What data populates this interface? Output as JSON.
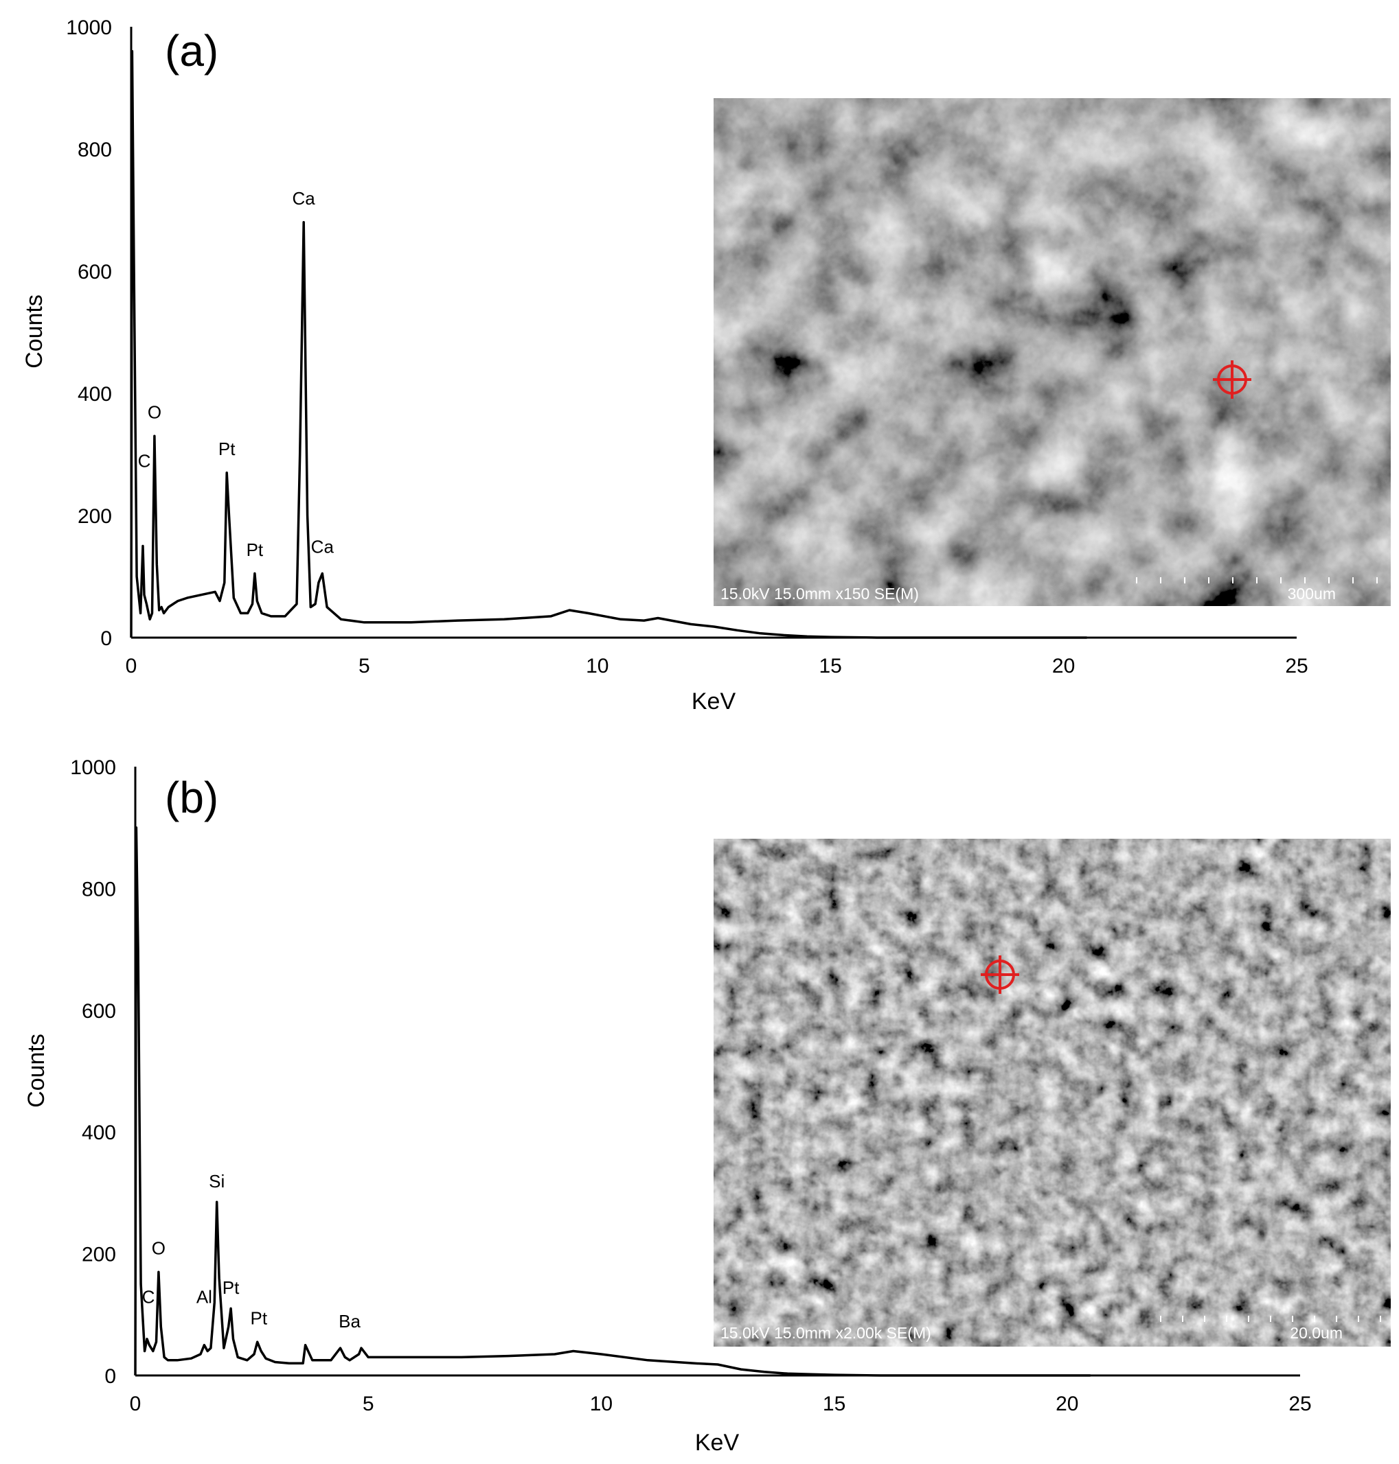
{
  "chart_data": [
    {
      "type": "line",
      "panel_label": "(a)",
      "xlabel": "KeV",
      "ylabel": "Counts",
      "xlim": [
        0,
        25
      ],
      "ylim": [
        0,
        1000
      ],
      "x_ticks": [
        0,
        5,
        10,
        15,
        20,
        25
      ],
      "y_ticks": [
        0,
        200,
        400,
        600,
        800,
        1000
      ],
      "grid": false,
      "legend": "none",
      "series": [
        {
          "x": [
            0,
            0.02,
            0.06,
            0.12,
            0.2,
            0.25,
            0.28,
            0.33,
            0.4,
            0.45,
            0.5,
            0.55,
            0.6,
            0.65,
            0.7,
            0.8,
            1.0,
            1.2,
            1.5,
            1.8,
            1.9,
            2.0,
            2.05,
            2.1,
            2.2,
            2.35,
            2.5,
            2.6,
            2.65,
            2.7,
            2.8,
            3.0,
            3.3,
            3.55,
            3.62,
            3.7,
            3.78,
            3.85,
            3.95,
            4.02,
            4.1,
            4.2,
            4.5,
            5,
            6,
            7,
            8,
            9,
            9.4,
            9.8,
            10.5,
            11,
            11.3,
            12,
            12.5,
            13,
            13.5,
            14,
            14.5,
            15,
            16,
            17,
            18,
            19,
            20,
            20.5
          ],
          "y": [
            0,
            960,
            600,
            100,
            40,
            150,
            70,
            55,
            30,
            40,
            330,
            120,
            45,
            50,
            40,
            50,
            60,
            65,
            70,
            75,
            60,
            90,
            270,
            200,
            65,
            40,
            40,
            55,
            105,
            60,
            40,
            35,
            35,
            55,
            300,
            680,
            200,
            50,
            55,
            90,
            105,
            50,
            30,
            25,
            25,
            28,
            30,
            35,
            45,
            40,
            30,
            28,
            32,
            22,
            18,
            12,
            7,
            4,
            2,
            1,
            0,
            0,
            0,
            0,
            0,
            0
          ]
        }
      ],
      "annotations": [
        {
          "text": "C",
          "x": 0.28,
          "y": 270
        },
        {
          "text": "O",
          "x": 0.5,
          "y": 350
        },
        {
          "text": "Pt",
          "x": 2.05,
          "y": 290
        },
        {
          "text": "Pt",
          "x": 2.65,
          "y": 125
        },
        {
          "text": "Ca",
          "x": 3.7,
          "y": 700
        },
        {
          "text": "Ca",
          "x": 4.1,
          "y": 130
        }
      ],
      "inset": {
        "caption_left": "15.0kV 15.0mm x150 SE(M)",
        "scale_label": "300um"
      }
    },
    {
      "type": "line",
      "panel_label": "(b)",
      "xlabel": "KeV",
      "ylabel": "Counts",
      "xlim": [
        0,
        25
      ],
      "ylim": [
        0,
        1000
      ],
      "x_ticks": [
        0,
        5,
        10,
        15,
        20,
        25
      ],
      "y_ticks": [
        0,
        200,
        400,
        600,
        800,
        1000
      ],
      "grid": false,
      "legend": "none",
      "series": [
        {
          "x": [
            0,
            0.02,
            0.06,
            0.12,
            0.2,
            0.25,
            0.3,
            0.38,
            0.45,
            0.5,
            0.55,
            0.62,
            0.7,
            0.9,
            1.2,
            1.4,
            1.48,
            1.55,
            1.62,
            1.7,
            1.75,
            1.8,
            1.9,
            2.0,
            2.05,
            2.1,
            2.2,
            2.4,
            2.55,
            2.62,
            2.7,
            2.8,
            3.0,
            3.3,
            3.6,
            3.65,
            3.8,
            4.2,
            4.4,
            4.5,
            4.6,
            4.8,
            4.85,
            5,
            6,
            7,
            8,
            9,
            9.4,
            10,
            11,
            12,
            12.5,
            13,
            13.5,
            14,
            14.5,
            15,
            16,
            17,
            18,
            19,
            20,
            20.5
          ],
          "y": [
            0,
            900,
            700,
            150,
            40,
            60,
            50,
            40,
            55,
            170,
            80,
            30,
            25,
            25,
            28,
            35,
            50,
            40,
            45,
            120,
            285,
            160,
            45,
            80,
            110,
            60,
            30,
            25,
            35,
            55,
            40,
            28,
            22,
            20,
            20,
            50,
            25,
            25,
            45,
            30,
            25,
            35,
            45,
            30,
            30,
            30,
            32,
            35,
            40,
            35,
            25,
            20,
            18,
            10,
            6,
            3,
            2,
            1,
            0,
            0,
            0,
            0,
            0,
            0
          ]
        }
      ],
      "annotations": [
        {
          "text": "C",
          "x": 0.28,
          "y": 110
        },
        {
          "text": "O",
          "x": 0.5,
          "y": 190
        },
        {
          "text": "Al",
          "x": 1.48,
          "y": 110
        },
        {
          "text": "Si",
          "x": 1.75,
          "y": 300
        },
        {
          "text": "Pt",
          "x": 2.05,
          "y": 125
        },
        {
          "text": "Pt",
          "x": 2.65,
          "y": 75
        },
        {
          "text": "Ba",
          "x": 4.6,
          "y": 70
        }
      ],
      "inset": {
        "caption_left": "15.0kV 15.0mm x2.00k SE(M)",
        "scale_label": "20.0um"
      }
    }
  ]
}
